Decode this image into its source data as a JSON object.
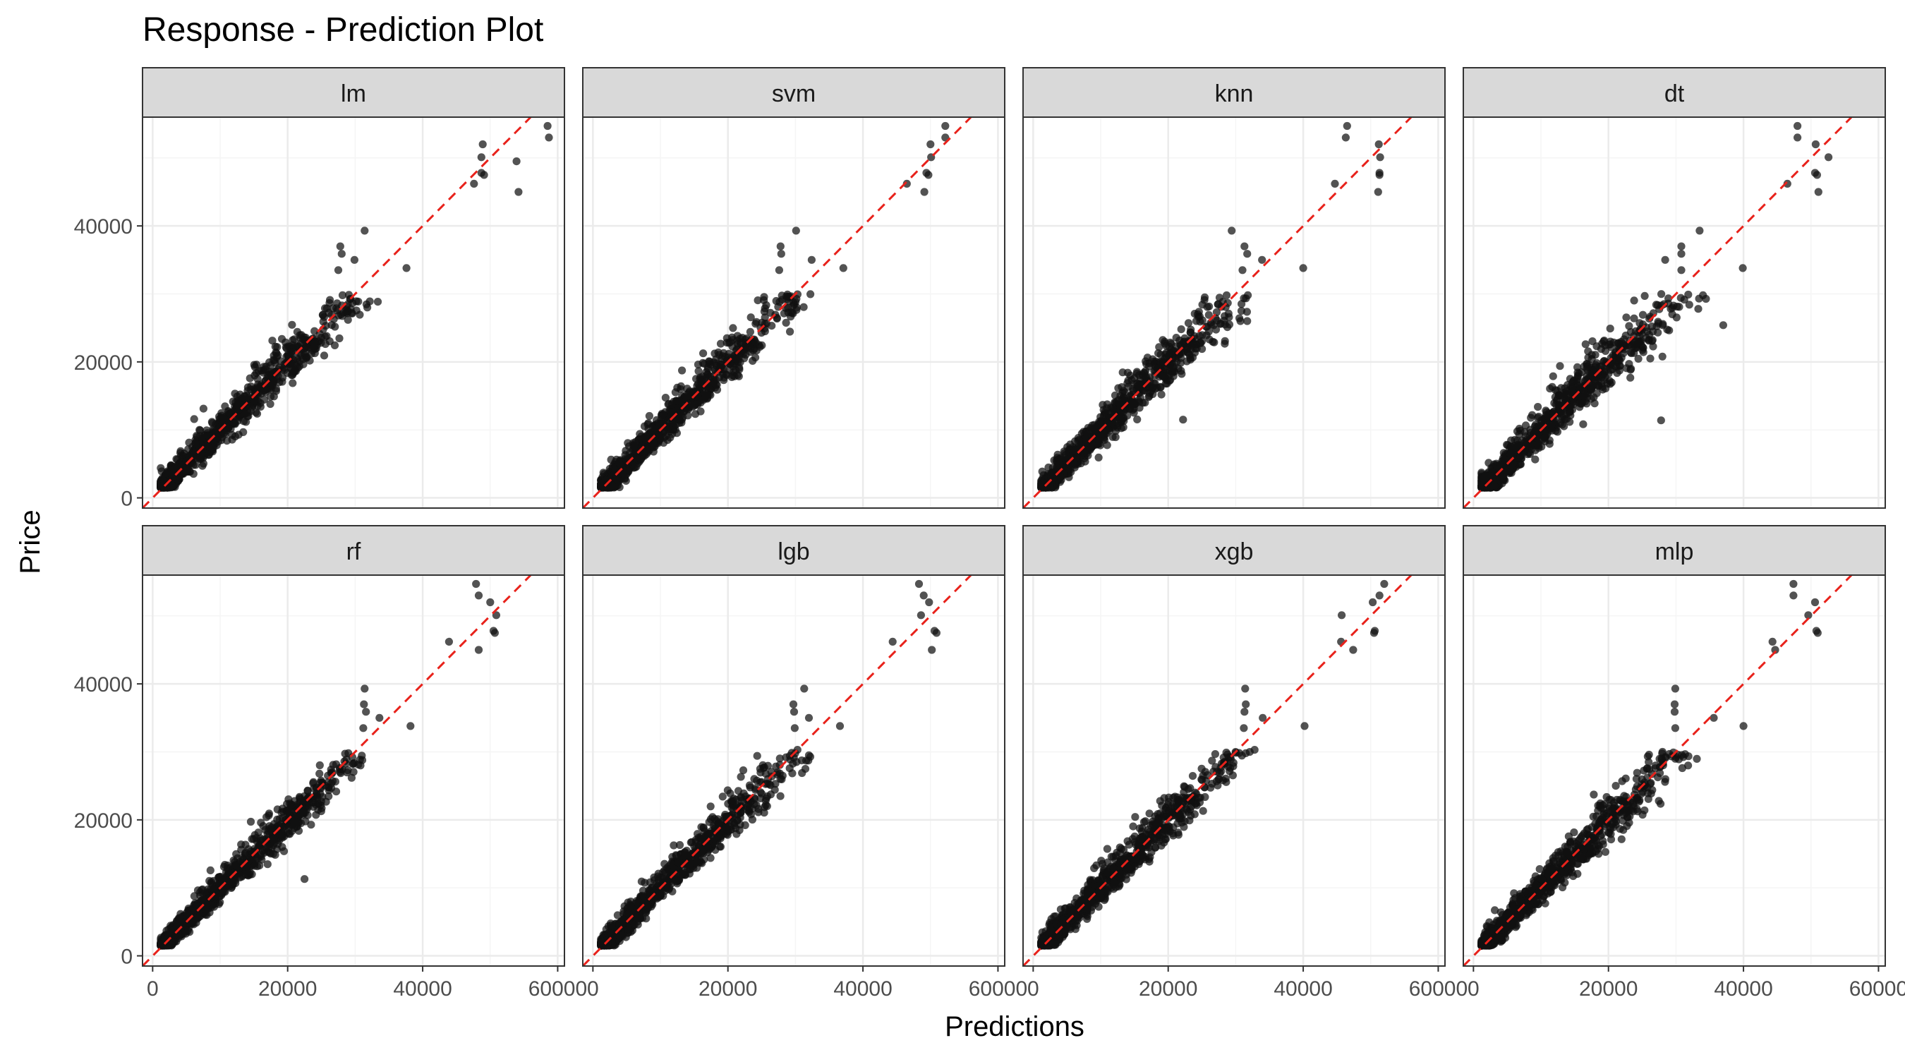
{
  "chart_data": {
    "type": "scatter",
    "title": "Response - Prediction Plot",
    "xlabel": "Predictions",
    "ylabel": "Price",
    "xlim": [
      -1500,
      61000
    ],
    "ylim": [
      -1500,
      56000
    ],
    "x_ticks": [
      0,
      20000,
      40000,
      60000
    ],
    "x_tick_labels": [
      "0",
      "20000",
      "40000",
      "60000"
    ],
    "y_ticks": [
      0,
      20000,
      40000
    ],
    "y_tick_labels": [
      "0",
      "20000",
      "40000"
    ],
    "grid": true,
    "legend": "none",
    "reference_line": {
      "slope": 1,
      "intercept": 0,
      "style": "dashed",
      "color": "#e8221b"
    },
    "colors": {
      "points": "#111111",
      "strip_fill": "#d9d9d9",
      "panel_border": "#333333",
      "grid_major": "#ebebeb",
      "grid_minor": "#f5f5f5",
      "text": "#4d4d4d"
    },
    "layout": "2 rows x 4 columns facets",
    "panels": [
      {
        "name": "lm",
        "outliers": [
          [
            58500,
            54700
          ],
          [
            58700,
            53000
          ],
          [
            48900,
            52000
          ],
          [
            48700,
            50100
          ],
          [
            48700,
            47800
          ],
          [
            49100,
            47500
          ],
          [
            53900,
            49500
          ],
          [
            47600,
            46200
          ],
          [
            54200,
            45000
          ],
          [
            37600,
            33800
          ],
          [
            31400,
            39300
          ],
          [
            29900,
            35000
          ],
          [
            27800,
            37000
          ],
          [
            28000,
            35900
          ],
          [
            27500,
            33500
          ],
          [
            31800,
            28000
          ],
          [
            29500,
            27200
          ],
          [
            26500,
            26900
          ]
        ],
        "spread": 1.0
      },
      {
        "name": "svm",
        "outliers": [
          [
            52200,
            54700
          ],
          [
            52200,
            53000
          ],
          [
            50000,
            52000
          ],
          [
            50100,
            50100
          ],
          [
            49400,
            47800
          ],
          [
            49700,
            47500
          ],
          [
            46500,
            46200
          ],
          [
            49100,
            45000
          ],
          [
            37100,
            33800
          ],
          [
            30100,
            39300
          ],
          [
            32400,
            35000
          ],
          [
            27800,
            37000
          ],
          [
            27900,
            35900
          ],
          [
            27600,
            33500
          ],
          [
            30200,
            28000
          ],
          [
            29500,
            27200
          ]
        ],
        "spread": 1.0
      },
      {
        "name": "knn",
        "outliers": [
          [
            46500,
            54700
          ],
          [
            46300,
            53000
          ],
          [
            51200,
            52000
          ],
          [
            51400,
            50100
          ],
          [
            51300,
            47800
          ],
          [
            51300,
            47500
          ],
          [
            44700,
            46200
          ],
          [
            51100,
            45000
          ],
          [
            40000,
            33800
          ],
          [
            29400,
            39300
          ],
          [
            33900,
            35000
          ],
          [
            31300,
            37000
          ],
          [
            31700,
            35900
          ],
          [
            31000,
            33500
          ],
          [
            31800,
            29800
          ],
          [
            31700,
            26000
          ],
          [
            30700,
            26000
          ],
          [
            22200,
            11500
          ]
        ],
        "spread": 1.05
      },
      {
        "name": "dt",
        "outliers": [
          [
            48000,
            54700
          ],
          [
            48000,
            53000
          ],
          [
            50700,
            52000
          ],
          [
            52600,
            50100
          ],
          [
            50600,
            47800
          ],
          [
            50900,
            47500
          ],
          [
            46500,
            46200
          ],
          [
            51100,
            45000
          ],
          [
            39900,
            33800
          ],
          [
            33500,
            39300
          ],
          [
            28400,
            35000
          ],
          [
            30800,
            37000
          ],
          [
            30800,
            35900
          ],
          [
            30800,
            33500
          ],
          [
            37000,
            25400
          ],
          [
            33300,
            27800
          ],
          [
            27800,
            11400
          ],
          [
            34000,
            29800
          ]
        ],
        "spread": 1.2
      },
      {
        "name": "rf",
        "outliers": [
          [
            47900,
            54700
          ],
          [
            48300,
            53000
          ],
          [
            50000,
            52000
          ],
          [
            50900,
            50100
          ],
          [
            50500,
            47800
          ],
          [
            50700,
            47500
          ],
          [
            43900,
            46200
          ],
          [
            48300,
            45000
          ],
          [
            38200,
            33800
          ],
          [
            31400,
            39300
          ],
          [
            33600,
            35000
          ],
          [
            31300,
            37000
          ],
          [
            31600,
            35900
          ],
          [
            31200,
            33500
          ],
          [
            30800,
            28000
          ],
          [
            22500,
            11300
          ],
          [
            29000,
            29800
          ]
        ],
        "spread": 0.9
      },
      {
        "name": "lgb",
        "outliers": [
          [
            48300,
            54700
          ],
          [
            49000,
            53000
          ],
          [
            49800,
            52000
          ],
          [
            48600,
            50100
          ],
          [
            50600,
            47800
          ],
          [
            50900,
            47500
          ],
          [
            44400,
            46200
          ],
          [
            50200,
            45000
          ],
          [
            36600,
            33800
          ],
          [
            31300,
            39300
          ],
          [
            32000,
            35000
          ],
          [
            29700,
            37000
          ],
          [
            29800,
            35900
          ],
          [
            29900,
            33500
          ],
          [
            30300,
            30300
          ],
          [
            32000,
            29500
          ]
        ],
        "spread": 0.95
      },
      {
        "name": "xgb",
        "outliers": [
          [
            52000,
            54700
          ],
          [
            51300,
            53000
          ],
          [
            50300,
            52000
          ],
          [
            45700,
            50100
          ],
          [
            50600,
            47800
          ],
          [
            50500,
            47500
          ],
          [
            45600,
            46200
          ],
          [
            47400,
            45000
          ],
          [
            40200,
            33800
          ],
          [
            31400,
            39300
          ],
          [
            34000,
            35000
          ],
          [
            31500,
            37000
          ],
          [
            31300,
            35900
          ],
          [
            31200,
            33500
          ],
          [
            32800,
            30300
          ],
          [
            31500,
            29800
          ]
        ],
        "spread": 1.0
      },
      {
        "name": "mlp",
        "outliers": [
          [
            47400,
            54700
          ],
          [
            47400,
            53000
          ],
          [
            50600,
            52000
          ],
          [
            49600,
            50100
          ],
          [
            50800,
            47800
          ],
          [
            51000,
            47500
          ],
          [
            44300,
            46200
          ],
          [
            44700,
            45000
          ],
          [
            40000,
            33800
          ],
          [
            29900,
            39300
          ],
          [
            35600,
            35000
          ],
          [
            29800,
            37000
          ],
          [
            29800,
            35900
          ],
          [
            29900,
            33500
          ],
          [
            28000,
            30000
          ],
          [
            31800,
            28000
          ]
        ],
        "spread": 1.0
      }
    ]
  }
}
